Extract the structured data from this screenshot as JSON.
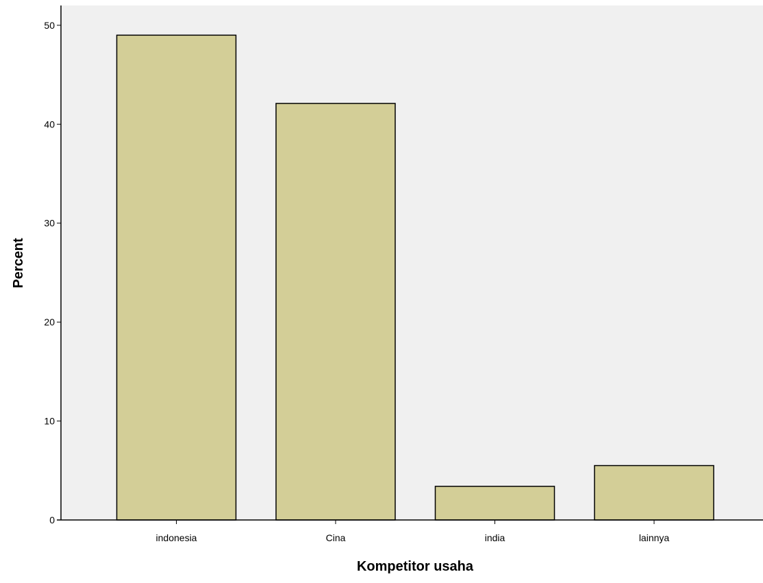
{
  "chart_data": {
    "type": "bar",
    "categories": [
      "indonesia",
      "Cina",
      "india",
      "lainnya"
    ],
    "values": [
      49.0,
      42.1,
      3.4,
      5.5
    ],
    "xlabel": "Kompetitor usaha",
    "ylabel": "Percent",
    "ylim": [
      0,
      52
    ],
    "yticks": [
      0,
      10,
      20,
      30,
      40,
      50
    ],
    "grid": false,
    "colors": {
      "bar_fill": "#d3ce97",
      "bar_stroke": "#000000",
      "plot_background": "#f0f0f0"
    }
  }
}
